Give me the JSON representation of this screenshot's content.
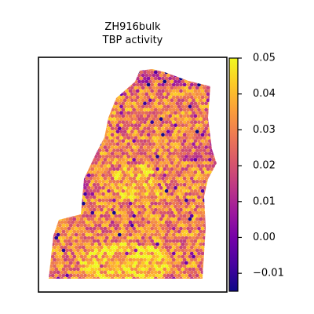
{
  "chart_data": {
    "type": "heatmap",
    "title": [
      "ZH916bulk",
      "TBP activity"
    ],
    "xlabel": "",
    "ylabel": "",
    "colorbar": {
      "colormap": "plasma",
      "range": [
        -0.015,
        0.05
      ],
      "ticks": [
        -0.01,
        0.0,
        0.01,
        0.02,
        0.03,
        0.04,
        0.05
      ],
      "tick_labels": [
        "−0.01",
        "0.00",
        "0.01",
        "0.02",
        "0.03",
        "0.04",
        "0.05"
      ],
      "placement": "right"
    },
    "axes_ticks_visible": false,
    "grid": false,
    "value_distribution": {
      "typical": 0.03,
      "low_regions": [
        "top-left edge",
        "top edge",
        "upper-right notch"
      ],
      "high_regions": [
        "bottom-center",
        "center"
      ]
    },
    "colormap_stops": [
      "#0d0887",
      "#46039f",
      "#7201a8",
      "#9c179e",
      "#bd3786",
      "#d8576b",
      "#ed7953",
      "#fb9f3a",
      "#fdca26",
      "#f0f921"
    ]
  }
}
